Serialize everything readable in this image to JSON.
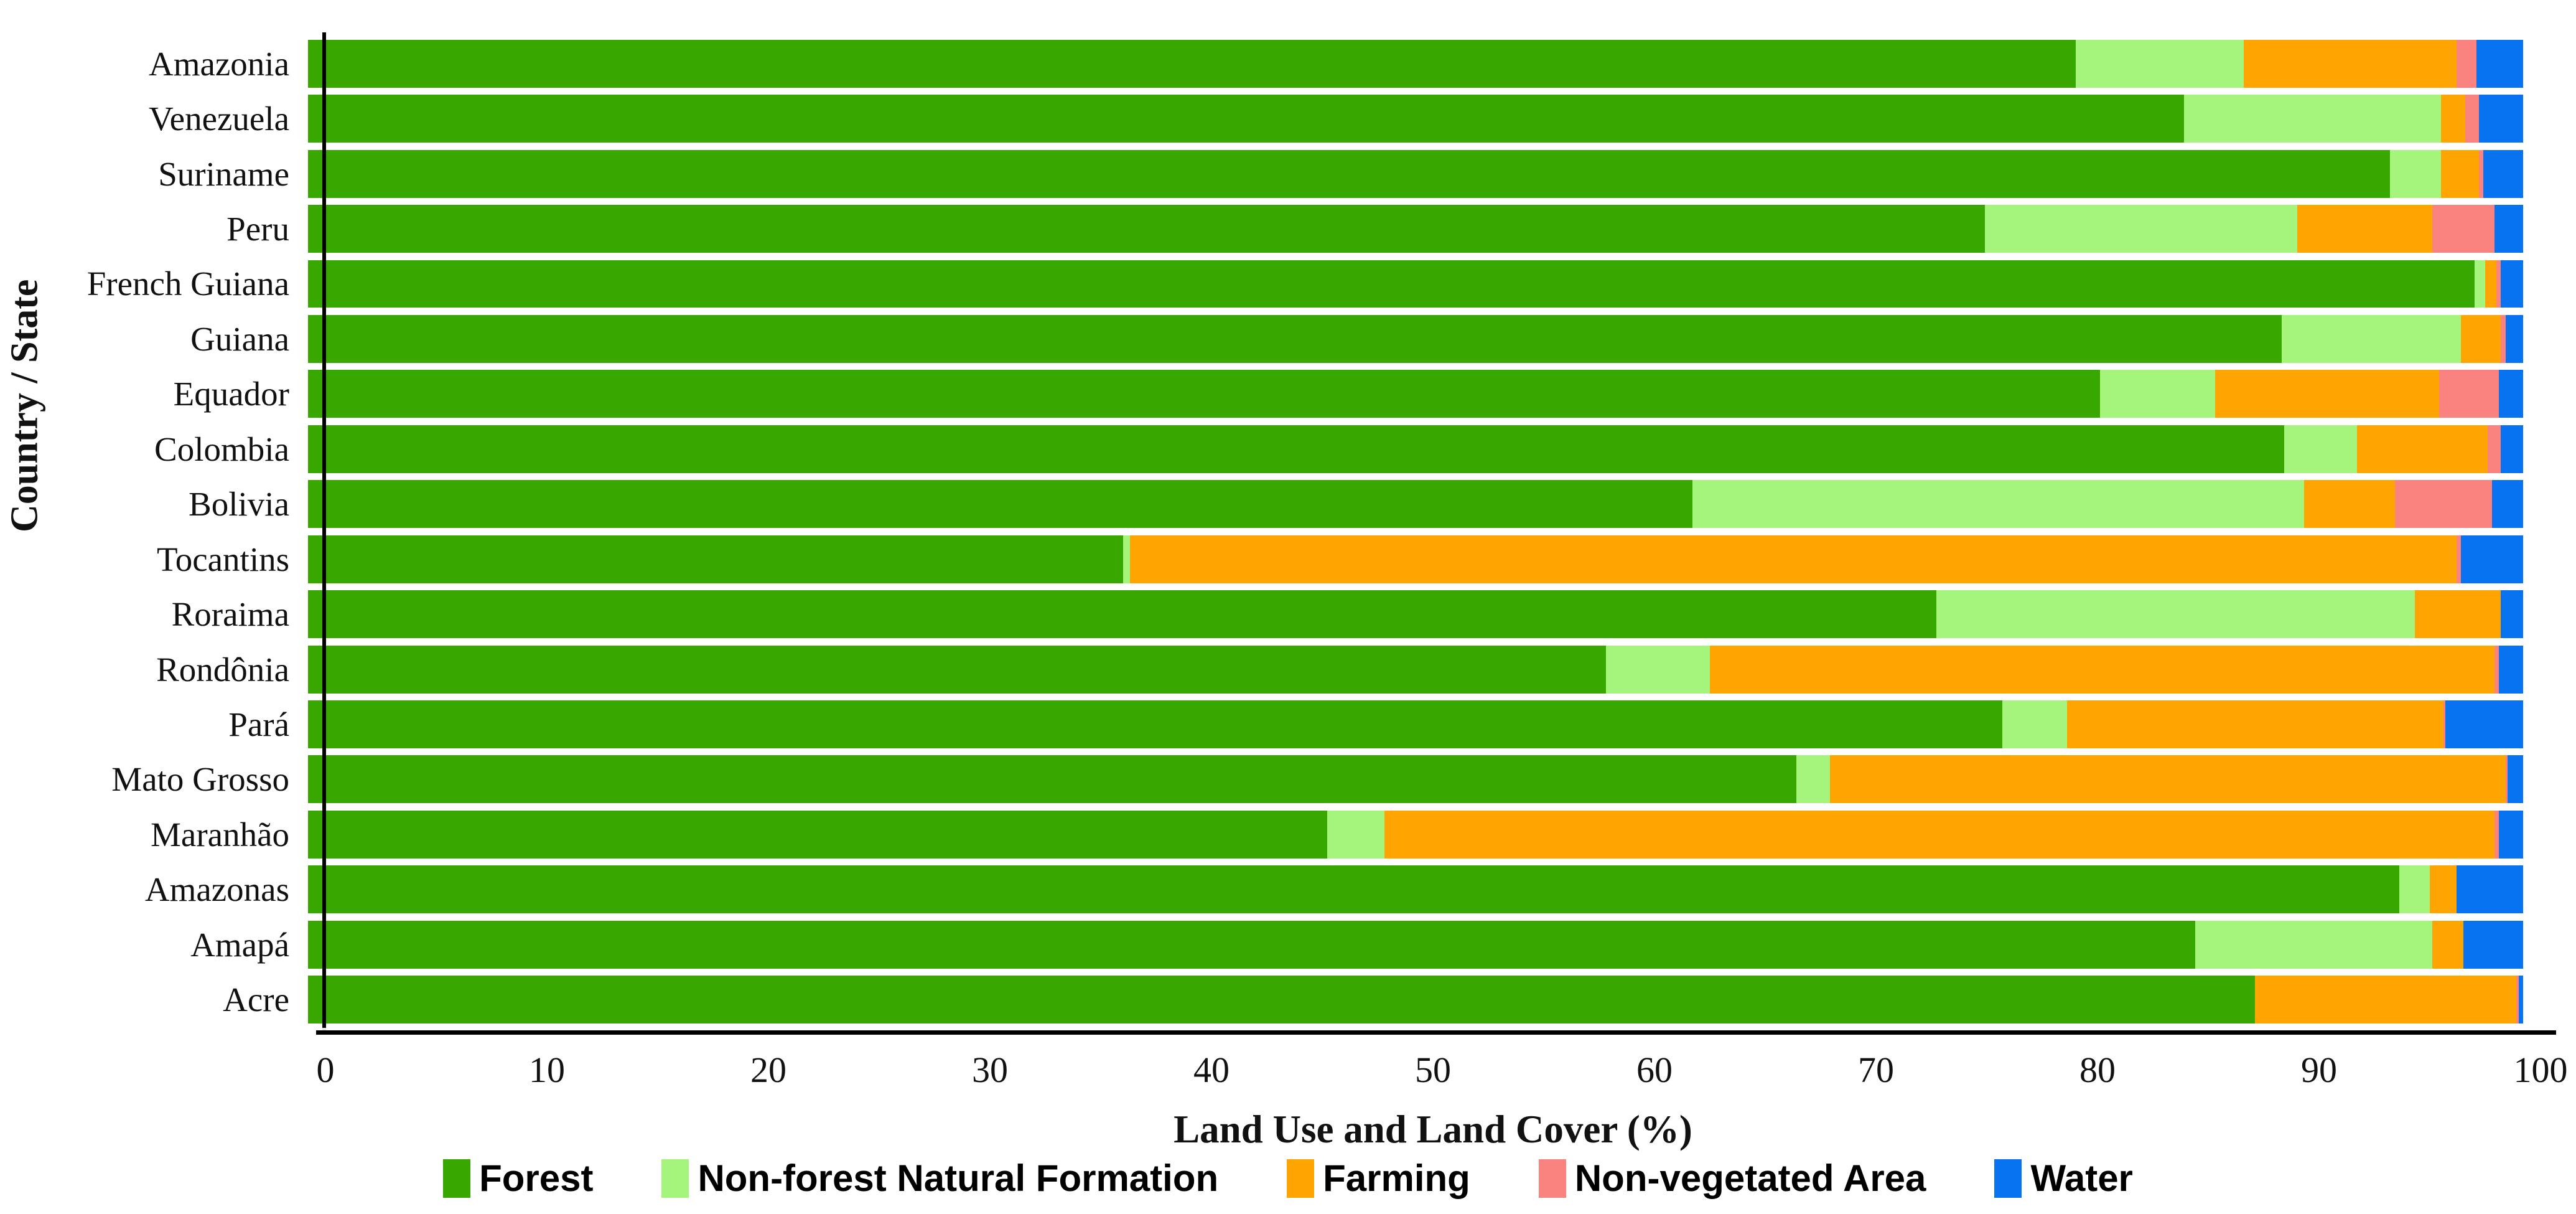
{
  "chart_data": {
    "type": "bar",
    "orientation": "horizontal-stacked",
    "xlabel": "Land Use and Land Cover (%)",
    "ylabel": "Country / State",
    "xlim": [
      0,
      100
    ],
    "x_ticks": [
      0,
      10,
      20,
      30,
      40,
      50,
      60,
      70,
      80,
      90,
      100
    ],
    "grid": false,
    "legend_position": "bottom",
    "categories": [
      "Amazonia",
      "Venezuela",
      "Suriname",
      "Peru",
      "French Guiana",
      "Guiana",
      "Equador",
      "Colombia",
      "Bolivia",
      "Tocantins",
      "Roraima",
      "Rondônia",
      "Pará",
      "Mato Grosso",
      "Maranhão",
      "Amazonas",
      "Amapá",
      "Acre"
    ],
    "series": [
      {
        "name": "Forest",
        "color": "#38A800",
        "values": [
          79.8,
          84.7,
          94.0,
          75.7,
          97.8,
          89.1,
          80.9,
          89.2,
          62.5,
          36.8,
          73.5,
          58.6,
          76.5,
          67.2,
          46.0,
          94.4,
          85.2,
          87.9
        ]
      },
      {
        "name": "Non-forest Natural Formation",
        "color": "#A5F57D",
        "values": [
          7.6,
          11.6,
          2.3,
          14.1,
          0.5,
          8.1,
          5.2,
          3.3,
          27.6,
          0.3,
          21.6,
          4.7,
          2.9,
          1.5,
          2.6,
          1.4,
          10.7,
          0.0
        ]
      },
      {
        "name": "Farming",
        "color": "#FFA502",
        "values": [
          9.6,
          1.1,
          1.7,
          6.1,
          0.5,
          1.8,
          10.1,
          5.9,
          4.1,
          59.9,
          3.9,
          35.4,
          17.0,
          30.5,
          50.1,
          1.2,
          1.4,
          11.8
        ]
      },
      {
        "name": "Non-vegetated Area",
        "color": "#FA8380",
        "values": [
          0.9,
          0.6,
          0.2,
          2.8,
          0.2,
          0.2,
          2.7,
          0.6,
          4.4,
          0.2,
          0.0,
          0.2,
          0.1,
          0.1,
          0.2,
          0.0,
          0.0,
          0.1
        ]
      },
      {
        "name": "Water",
        "color": "#0873F0",
        "values": [
          2.1,
          2.0,
          1.8,
          1.3,
          1.0,
          0.8,
          1.1,
          1.0,
          1.4,
          2.8,
          1.0,
          1.1,
          3.5,
          0.7,
          1.1,
          3.0,
          2.7,
          0.2
        ]
      }
    ]
  }
}
